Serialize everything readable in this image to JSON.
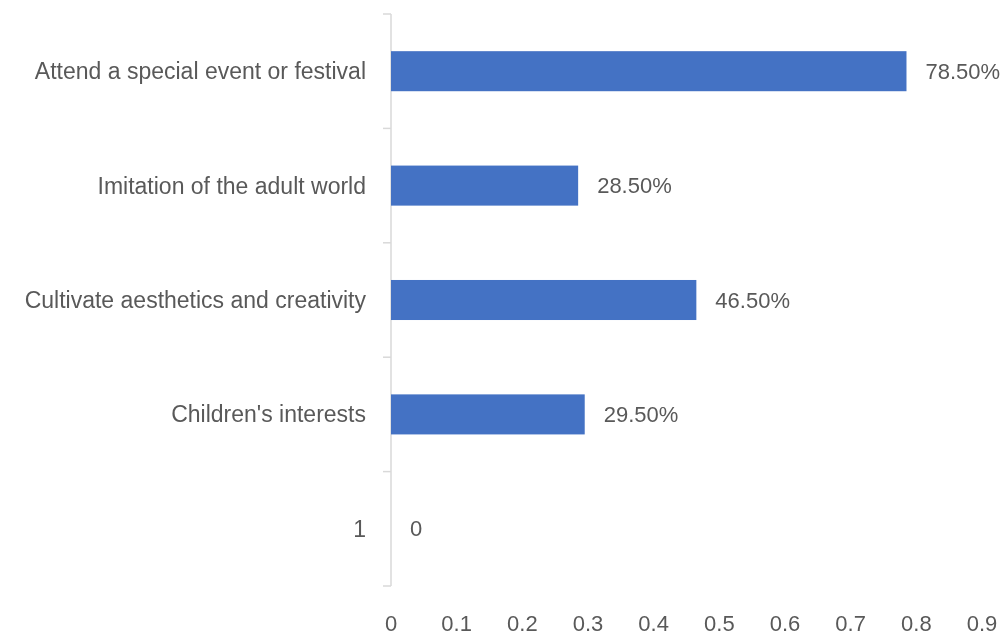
{
  "chart_data": {
    "type": "bar",
    "orientation": "horizontal",
    "categories": [
      "Attend a special event or festival",
      "Imitation of the adult world",
      "Cultivate aesthetics and creativity",
      "Children's interests",
      "1"
    ],
    "values": [
      0.785,
      0.285,
      0.465,
      0.295,
      0
    ],
    "value_labels": [
      "78.50%",
      "28.50%",
      "46.50%",
      "29.50%",
      "0"
    ],
    "color": "#4472c4",
    "xlim": [
      0,
      0.9
    ],
    "xticks": [
      0,
      0.1,
      0.2,
      0.3,
      0.4,
      0.5,
      0.6,
      0.7,
      0.8,
      0.9
    ]
  }
}
